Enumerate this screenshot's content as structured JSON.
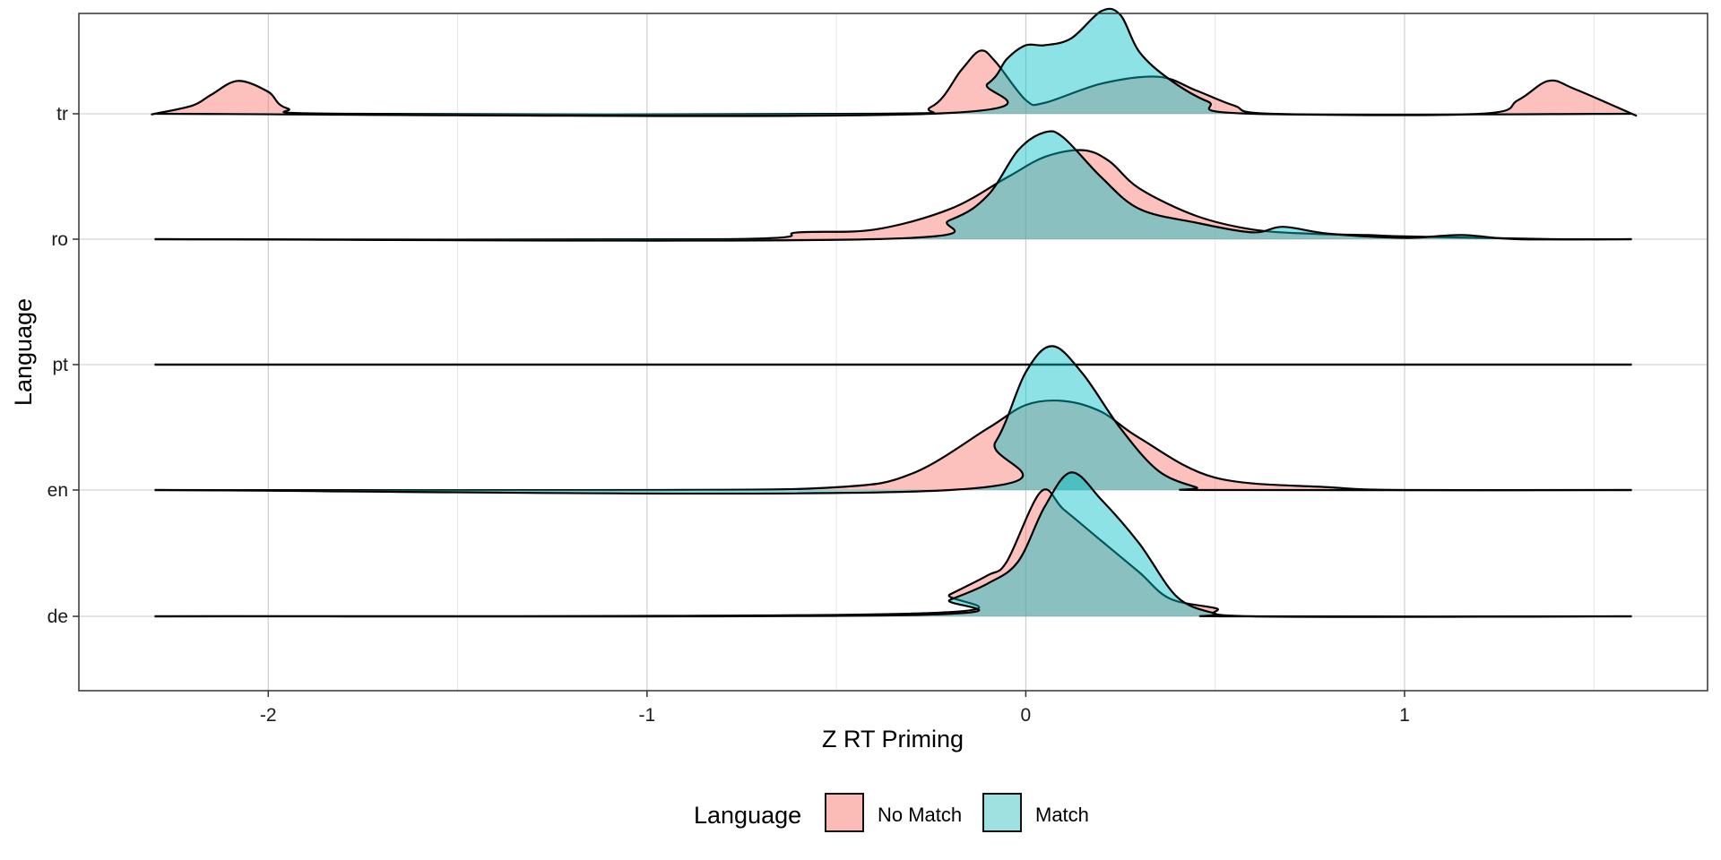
{
  "chart_data": {
    "type": "ridgeline-density",
    "xlabel": "Z RT Priming",
    "ylabel": "Language",
    "xlim": [
      -2.5,
      1.8
    ],
    "x_ticks": [
      -2,
      -1,
      0,
      1
    ],
    "x_tick_labels": [
      "-2",
      "-1",
      "0",
      "1"
    ],
    "grid": true,
    "legend_position": "bottom",
    "legend_title": "Language",
    "categories": [
      "de",
      "en",
      "pt",
      "ro",
      "tr"
    ],
    "series": [
      {
        "name": "No Match",
        "color": "#F8766D"
      },
      {
        "name": "Match",
        "color": "#00BFC4"
      }
    ],
    "fill_opacity": 0.45,
    "x_range": [
      -2.3,
      1.6
    ],
    "densities": {
      "de": {
        "No Match": [
          [
            -0.3,
            0.02
          ],
          [
            -0.2,
            0.16
          ],
          [
            -0.1,
            0.3
          ],
          [
            -0.05,
            0.4
          ],
          [
            0.04,
            0.91
          ],
          [
            0.1,
            0.78
          ],
          [
            0.2,
            0.55
          ],
          [
            0.3,
            0.32
          ],
          [
            0.38,
            0.13
          ],
          [
            0.5,
            0.06
          ],
          [
            0.6,
            0.0
          ]
        ],
        "Match": [
          [
            -0.3,
            0.01
          ],
          [
            -0.2,
            0.12
          ],
          [
            -0.1,
            0.24
          ],
          [
            -0.02,
            0.4
          ],
          [
            0.05,
            0.8
          ],
          [
            0.12,
            1.05
          ],
          [
            0.2,
            0.85
          ],
          [
            0.3,
            0.53
          ],
          [
            0.4,
            0.14
          ],
          [
            0.5,
            0.02
          ],
          [
            0.55,
            0.0
          ]
        ]
      },
      "en": {
        "No Match": [
          [
            -1.0,
            0.0
          ],
          [
            -0.5,
            0.02
          ],
          [
            -0.3,
            0.12
          ],
          [
            -0.1,
            0.45
          ],
          [
            0.0,
            0.62
          ],
          [
            0.1,
            0.65
          ],
          [
            0.2,
            0.57
          ],
          [
            0.3,
            0.38
          ],
          [
            0.5,
            0.09
          ],
          [
            0.8,
            0.02
          ],
          [
            1.0,
            0.0
          ]
        ],
        "Match": [
          [
            -0.2,
            0.0
          ],
          [
            -0.08,
            0.35
          ],
          [
            0.0,
            0.86
          ],
          [
            0.07,
            1.05
          ],
          [
            0.15,
            0.85
          ],
          [
            0.25,
            0.45
          ],
          [
            0.35,
            0.14
          ],
          [
            0.45,
            0.02
          ],
          [
            0.5,
            0.0
          ]
        ]
      },
      "pt": {
        "No Match": [],
        "Match": []
      },
      "ro": {
        "No Match": [
          [
            -0.8,
            0.0
          ],
          [
            -0.6,
            0.05
          ],
          [
            -0.4,
            0.07
          ],
          [
            -0.2,
            0.22
          ],
          [
            -0.05,
            0.45
          ],
          [
            0.05,
            0.6
          ],
          [
            0.15,
            0.65
          ],
          [
            0.22,
            0.57
          ],
          [
            0.3,
            0.37
          ],
          [
            0.45,
            0.17
          ],
          [
            0.6,
            0.07
          ],
          [
            0.75,
            0.04
          ],
          [
            0.9,
            0.03
          ],
          [
            1.0,
            0.02
          ],
          [
            1.2,
            0.01
          ],
          [
            1.4,
            0.0
          ]
        ],
        "Match": [
          [
            -0.4,
            0.0
          ],
          [
            -0.2,
            0.14
          ],
          [
            -0.1,
            0.32
          ],
          [
            -0.02,
            0.65
          ],
          [
            0.05,
            0.78
          ],
          [
            0.1,
            0.74
          ],
          [
            0.2,
            0.45
          ],
          [
            0.3,
            0.22
          ],
          [
            0.45,
            0.12
          ],
          [
            0.6,
            0.05
          ],
          [
            0.68,
            0.09
          ],
          [
            0.8,
            0.04
          ],
          [
            1.0,
            0.01
          ],
          [
            1.15,
            0.03
          ],
          [
            1.3,
            0.0
          ]
        ]
      },
      "tr": {
        "No Match": [
          [
            -2.3,
            0.0
          ],
          [
            -2.2,
            0.06
          ],
          [
            -2.15,
            0.14
          ],
          [
            -2.08,
            0.24
          ],
          [
            -2.0,
            0.16
          ],
          [
            -1.95,
            0.04
          ],
          [
            -1.8,
            0.0
          ],
          [
            -0.4,
            0.0
          ],
          [
            -0.25,
            0.05
          ],
          [
            -0.17,
            0.32
          ],
          [
            -0.12,
            0.46
          ],
          [
            -0.08,
            0.38
          ],
          [
            0.0,
            0.1
          ],
          [
            0.05,
            0.08
          ],
          [
            0.2,
            0.22
          ],
          [
            0.35,
            0.27
          ],
          [
            0.45,
            0.17
          ],
          [
            0.55,
            0.06
          ],
          [
            0.65,
            0.0
          ],
          [
            1.2,
            0.0
          ],
          [
            1.3,
            0.1
          ],
          [
            1.38,
            0.24
          ],
          [
            1.45,
            0.18
          ],
          [
            1.6,
            0.0
          ]
        ],
        "Match": [
          [
            -0.25,
            0.0
          ],
          [
            -0.1,
            0.22
          ],
          [
            -0.05,
            0.4
          ],
          [
            0.0,
            0.5
          ],
          [
            0.05,
            0.5
          ],
          [
            0.12,
            0.55
          ],
          [
            0.2,
            0.75
          ],
          [
            0.25,
            0.72
          ],
          [
            0.3,
            0.45
          ],
          [
            0.38,
            0.25
          ],
          [
            0.48,
            0.09
          ],
          [
            0.6,
            0.0
          ]
        ]
      }
    }
  }
}
